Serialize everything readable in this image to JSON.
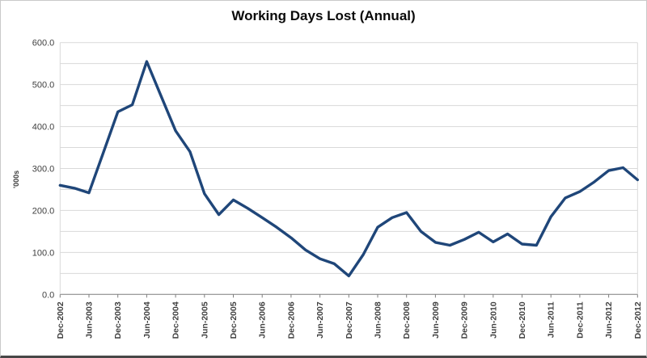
{
  "window": {
    "title": "Working Days Lost (Annual)"
  },
  "colors": {
    "series_line": "#1F4679",
    "gridline": "#D9D9D9",
    "axis_line": "#7F7F7F",
    "tick_text": "#3F3F3F",
    "title_text": "#0A0A0A"
  },
  "chart_data": {
    "type": "line",
    "title": "Working Days Lost (Annual)",
    "xlabel": "",
    "ylabel": "'000s",
    "ylim": [
      0,
      600
    ],
    "grid": "horizontal",
    "legend_position": "none",
    "y_minor_gridline_step": 50,
    "y_major_ticks": {
      "values": [
        600,
        500,
        400,
        300,
        200,
        100,
        0
      ],
      "labels": [
        "600.0",
        "500.0",
        "400.0",
        "300.0",
        "200.0",
        "100.0",
        "0.0"
      ]
    },
    "x_tick_labels": [
      "Dec-2002",
      "Jun-2003",
      "Dec-2003",
      "Jun-2004",
      "Dec-2004",
      "Jun-2005",
      "Dec-2005",
      "Jun-2006",
      "Dec-2006",
      "Jun-2007",
      "Dec-2007",
      "Jun-2008",
      "Dec-2008",
      "Jun-2009",
      "Dec-2009",
      "Jun-2010",
      "Dec-2010",
      "Jun-2011",
      "Dec-2011",
      "Jun-2012",
      "Dec-2012"
    ],
    "series": [
      {
        "name": "Working Days Lost (Annual)",
        "color": "#1F4679",
        "x": [
          "Dec-2002",
          "Mar-2003",
          "Jun-2003",
          "Sep-2003",
          "Dec-2003",
          "Mar-2004",
          "Jun-2004",
          "Sep-2004",
          "Dec-2004",
          "Mar-2005",
          "Jun-2005",
          "Sep-2005",
          "Dec-2005",
          "Mar-2006",
          "Jun-2006",
          "Sep-2006",
          "Dec-2006",
          "Mar-2007",
          "Jun-2007",
          "Sep-2007",
          "Dec-2007",
          "Mar-2008",
          "Jun-2008",
          "Sep-2008",
          "Dec-2008",
          "Mar-2009",
          "Jun-2009",
          "Sep-2009",
          "Dec-2009",
          "Mar-2010",
          "Jun-2010",
          "Sep-2010",
          "Dec-2010",
          "Mar-2011",
          "Jun-2011",
          "Sep-2011",
          "Dec-2011",
          "Mar-2012",
          "Jun-2012",
          "Sep-2012",
          "Dec-2012"
        ],
        "values": [
          260,
          253,
          242,
          338,
          435,
          452,
          555,
          472,
          390,
          340,
          240,
          190,
          225,
          205,
          183,
          160,
          135,
          106,
          85,
          73,
          44,
          95,
          160,
          183,
          195,
          150,
          124,
          117,
          131,
          148,
          125,
          144,
          120,
          117,
          185,
          230,
          245,
          268,
          295,
          302,
          273
        ]
      }
    ]
  }
}
